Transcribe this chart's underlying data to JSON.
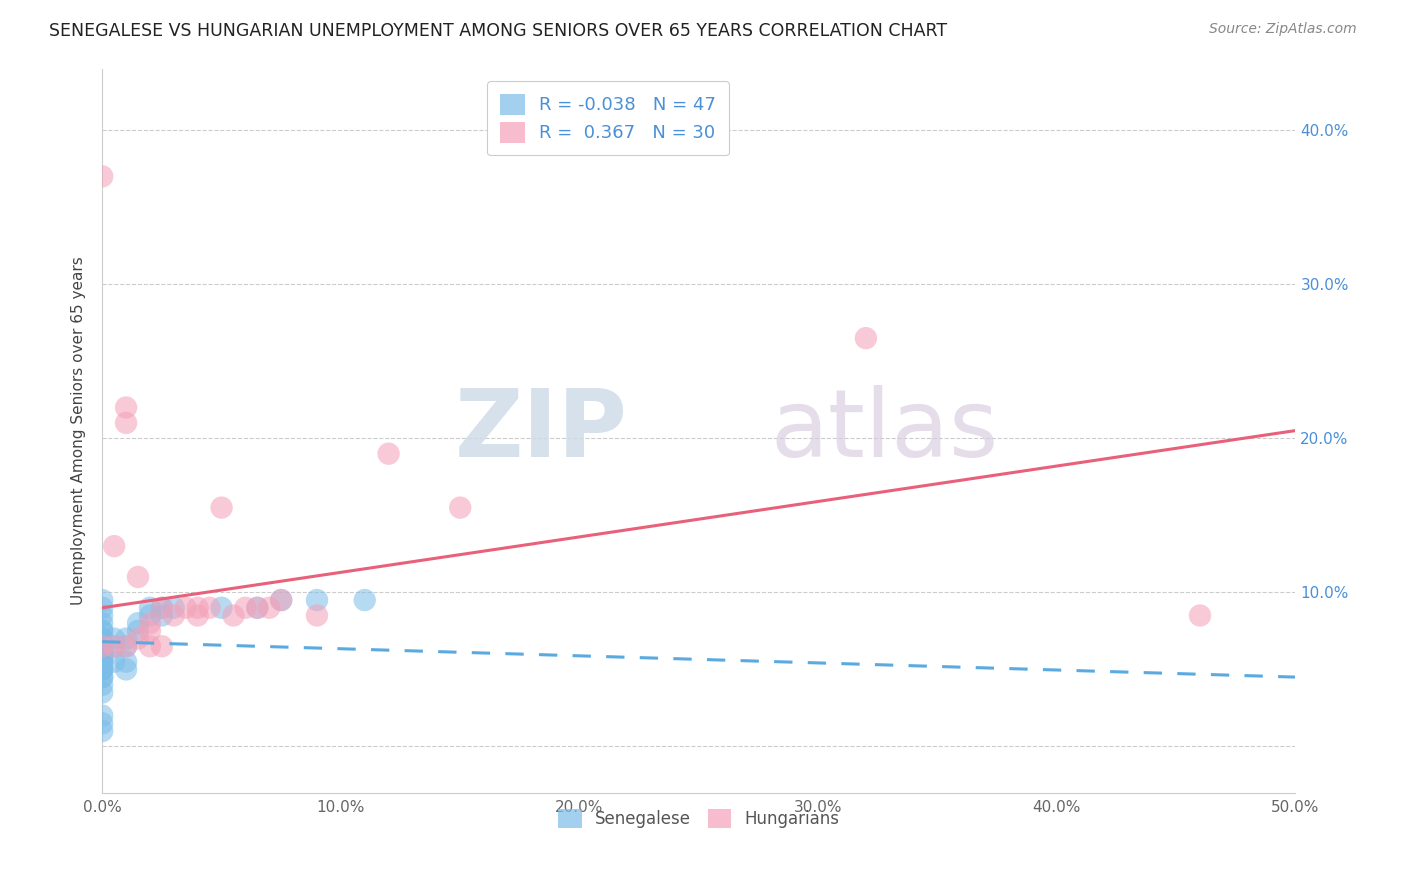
{
  "title": "SENEGALESE VS HUNGARIAN UNEMPLOYMENT AMONG SENIORS OVER 65 YEARS CORRELATION CHART",
  "source": "Source: ZipAtlas.com",
  "ylabel": "Unemployment Among Seniors over 65 years",
  "xlim": [
    0.0,
    0.5
  ],
  "ylim": [
    -0.03,
    0.44
  ],
  "xticks": [
    0.0,
    0.1,
    0.2,
    0.3,
    0.4,
    0.5
  ],
  "yticks": [
    0.0,
    0.1,
    0.2,
    0.3,
    0.4
  ],
  "xticklabels": [
    "0.0%",
    "10.0%",
    "20.0%",
    "30.0%",
    "40.0%",
    "50.0%"
  ],
  "yticklabels_right": [
    "10.0%",
    "20.0%",
    "30.0%",
    "40.0%"
  ],
  "yticks_right": [
    0.1,
    0.2,
    0.3,
    0.4
  ],
  "legend_r_senegalese": "-0.038",
  "legend_n_senegalese": "47",
  "legend_r_hungarian": " 0.367",
  "legend_n_hungarian": "30",
  "senegalese_color": "#7bbde8",
  "hungarian_color": "#f4a0b8",
  "trendline_senegalese_color": "#5aaae0",
  "trendline_hungarian_color": "#e8607a",
  "watermark_zip": "ZIP",
  "watermark_atlas": "atlas",
  "senegalese_x": [
    0.0,
    0.0,
    0.0,
    0.0,
    0.0,
    0.0,
    0.0,
    0.0,
    0.0,
    0.0,
    0.0,
    0.0,
    0.0,
    0.0,
    0.0,
    0.0,
    0.0,
    0.0,
    0.0,
    0.0,
    0.0,
    0.0,
    0.0,
    0.0,
    0.0,
    0.0,
    0.0,
    0.0,
    0.005,
    0.005,
    0.005,
    0.01,
    0.01,
    0.01,
    0.01,
    0.015,
    0.015,
    0.02,
    0.02,
    0.025,
    0.025,
    0.03,
    0.05,
    0.065,
    0.075,
    0.09,
    0.11
  ],
  "senegalese_y": [
    0.035,
    0.04,
    0.045,
    0.045,
    0.05,
    0.05,
    0.05,
    0.055,
    0.055,
    0.06,
    0.06,
    0.06,
    0.065,
    0.065,
    0.07,
    0.07,
    0.075,
    0.075,
    0.08,
    0.085,
    0.09,
    0.095,
    0.055,
    0.06,
    0.065,
    0.02,
    0.015,
    0.01,
    0.055,
    0.065,
    0.07,
    0.05,
    0.055,
    0.065,
    0.07,
    0.075,
    0.08,
    0.085,
    0.09,
    0.085,
    0.09,
    0.09,
    0.09,
    0.09,
    0.095,
    0.095,
    0.095
  ],
  "hungarian_x": [
    0.0,
    0.0,
    0.005,
    0.005,
    0.01,
    0.01,
    0.01,
    0.015,
    0.015,
    0.02,
    0.02,
    0.02,
    0.025,
    0.025,
    0.03,
    0.035,
    0.04,
    0.04,
    0.045,
    0.05,
    0.055,
    0.06,
    0.065,
    0.07,
    0.075,
    0.09,
    0.12,
    0.15,
    0.32,
    0.46
  ],
  "hungarian_y": [
    0.065,
    0.37,
    0.065,
    0.13,
    0.065,
    0.21,
    0.22,
    0.07,
    0.11,
    0.065,
    0.075,
    0.08,
    0.065,
    0.09,
    0.085,
    0.09,
    0.085,
    0.09,
    0.09,
    0.155,
    0.085,
    0.09,
    0.09,
    0.09,
    0.095,
    0.085,
    0.19,
    0.155,
    0.265,
    0.085
  ],
  "trendline_sen_x0": 0.0,
  "trendline_sen_x1": 0.5,
  "trendline_sen_y0": 0.068,
  "trendline_sen_y1": 0.045,
  "trendline_hun_x0": 0.0,
  "trendline_hun_x1": 0.5,
  "trendline_hun_y0": 0.09,
  "trendline_hun_y1": 0.205
}
